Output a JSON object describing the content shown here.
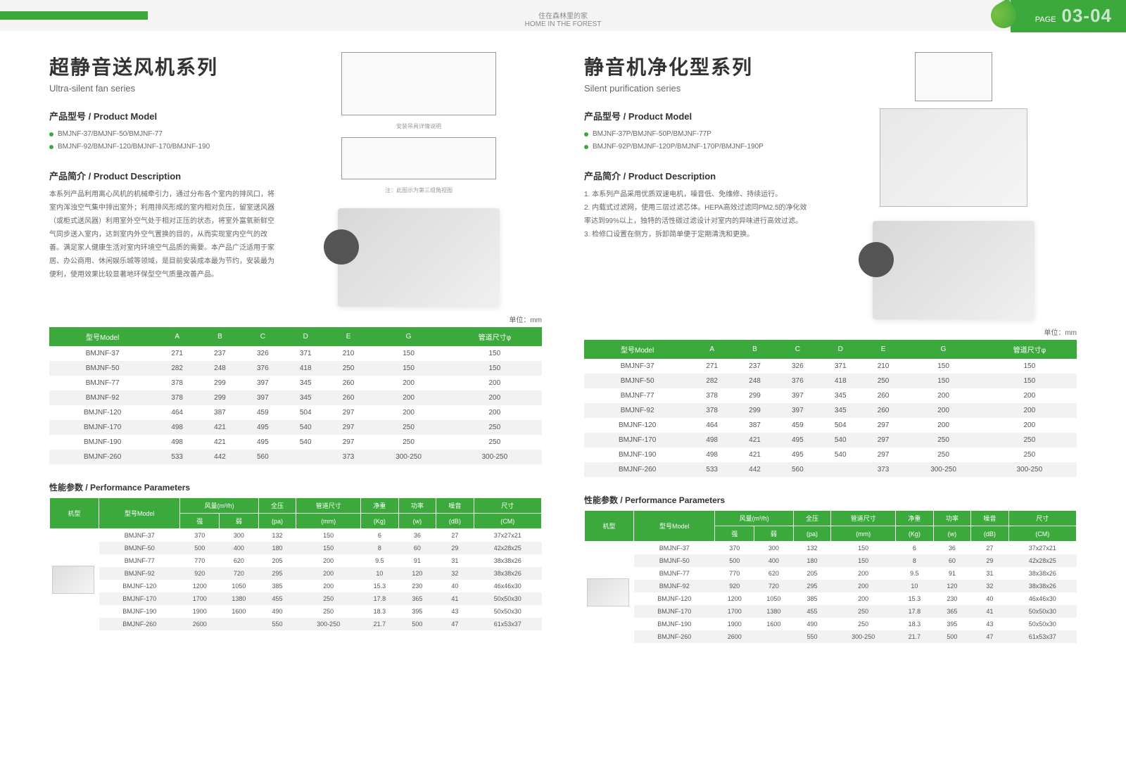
{
  "header": {
    "tag_cn": "住在森林里的家",
    "tag_en": "HOME IN THE FOREST",
    "page_label": "PAGE",
    "page_num": "03-04"
  },
  "left": {
    "title_cn": "超静音送风机系列",
    "title_en": "Ultra-silent fan series",
    "model_label": "产品型号 / Product Model",
    "models": [
      "BMJNF-37/BMJNF-50/BMJNF-77",
      "BMJNF-92/BMJNF-120/BMJNF-170/BMJNF-190"
    ],
    "desc_label": "产品简介 / Product Description",
    "desc": "本系列产品利用离心风机的机械牵引力，通过分布各个室内的排风口，将室内浑浊空气集中排出室外；利用排风形成的室内相对负压，留室送风器（或柜式送风器）利用室外空气处于相对正压的状态，将室外富氧新鲜空气同步送入室内，达到室内外空气置换的目的，从而实现室内空气的改善。满足家人健康生活对室内环境空气品质的需要。本产品广泛适用于家居、办公商用、休闲娱乐城等领域，是目前安装成本最为节约，安装最为便利，使用效果比较显著地环保型空气质量改善产品。",
    "diag_note": "注：此图示为第三组角视图",
    "diag_note2": "安装吊具详情说明"
  },
  "right": {
    "title_cn": "静音机净化型系列",
    "title_en": "Silent purification series",
    "model_label": "产品型号 / Product Model",
    "models": [
      "BMJNF-37P/BMJNF-50P/BMJNF-77P",
      "BMJNF-92P/BMJNF-120P/BMJNF-170P/BMJNF-190P"
    ],
    "desc_label": "产品简介 / Product Description",
    "desc": "1. 本系列产品采用优质双速电机，噪音低、免维修、持续运行。\n2. 内载式过滤网，使用三层过滤芯体。HEPA高效过滤同PM2.5的净化效率达到99%以上，独特的活性碳过滤设计对室内的异味进行高效过滤。\n3. 检修口设置在侧方，拆卸简单便于定期清洗和更换。"
  },
  "unit_label": "单位：mm",
  "dim": {
    "cols": [
      "型号Model",
      "A",
      "B",
      "C",
      "D",
      "E",
      "G",
      "管道尺寸φ"
    ],
    "rows": [
      [
        "BMJNF-37",
        "271",
        "237",
        "326",
        "371",
        "210",
        "150",
        "150"
      ],
      [
        "BMJNF-50",
        "282",
        "248",
        "376",
        "418",
        "250",
        "150",
        "150"
      ],
      [
        "BMJNF-77",
        "378",
        "299",
        "397",
        "345",
        "260",
        "200",
        "200"
      ],
      [
        "BMJNF-92",
        "378",
        "299",
        "397",
        "345",
        "260",
        "200",
        "200"
      ],
      [
        "BMJNF-120",
        "464",
        "387",
        "459",
        "504",
        "297",
        "200",
        "200"
      ],
      [
        "BMJNF-170",
        "498",
        "421",
        "495",
        "540",
        "297",
        "250",
        "250"
      ],
      [
        "BMJNF-190",
        "498",
        "421",
        "495",
        "540",
        "297",
        "250",
        "250"
      ],
      [
        "BMJNF-260",
        "533",
        "442",
        "560",
        "",
        "373",
        "300-250",
        "300-250"
      ]
    ]
  },
  "perf_label": "性能参数 / Performance Parameters",
  "perf": {
    "h1": [
      "机型",
      "型号Model",
      "风量(m³/h)",
      "",
      "全压",
      "管道尺寸",
      "净重",
      "功率",
      "噪音",
      "尺寸"
    ],
    "h2": [
      "",
      "",
      "强",
      "弱",
      "(pa)",
      "(mm)",
      "(Kg)",
      "(w)",
      "(dB)",
      "(CM)"
    ],
    "rows": [
      [
        "BMJNF-37",
        "370",
        "300",
        "132",
        "150",
        "6",
        "36",
        "27",
        "37x27x21"
      ],
      [
        "BMJNF-50",
        "500",
        "400",
        "180",
        "150",
        "8",
        "60",
        "29",
        "42x28x25"
      ],
      [
        "BMJNF-77",
        "770",
        "620",
        "205",
        "200",
        "9.5",
        "91",
        "31",
        "38x38x26"
      ],
      [
        "BMJNF-92",
        "920",
        "720",
        "295",
        "200",
        "10",
        "120",
        "32",
        "38x38x26"
      ],
      [
        "BMJNF-120",
        "1200",
        "1050",
        "385",
        "200",
        "15.3",
        "230",
        "40",
        "46x46x30"
      ],
      [
        "BMJNF-170",
        "1700",
        "1380",
        "455",
        "250",
        "17.8",
        "365",
        "41",
        "50x50x30"
      ],
      [
        "BMJNF-190",
        "1900",
        "1600",
        "490",
        "250",
        "18.3",
        "395",
        "43",
        "50x50x30"
      ],
      [
        "BMJNF-260",
        "2600",
        "",
        "550",
        "300-250",
        "21.7",
        "500",
        "47",
        "61x53x37"
      ]
    ]
  }
}
